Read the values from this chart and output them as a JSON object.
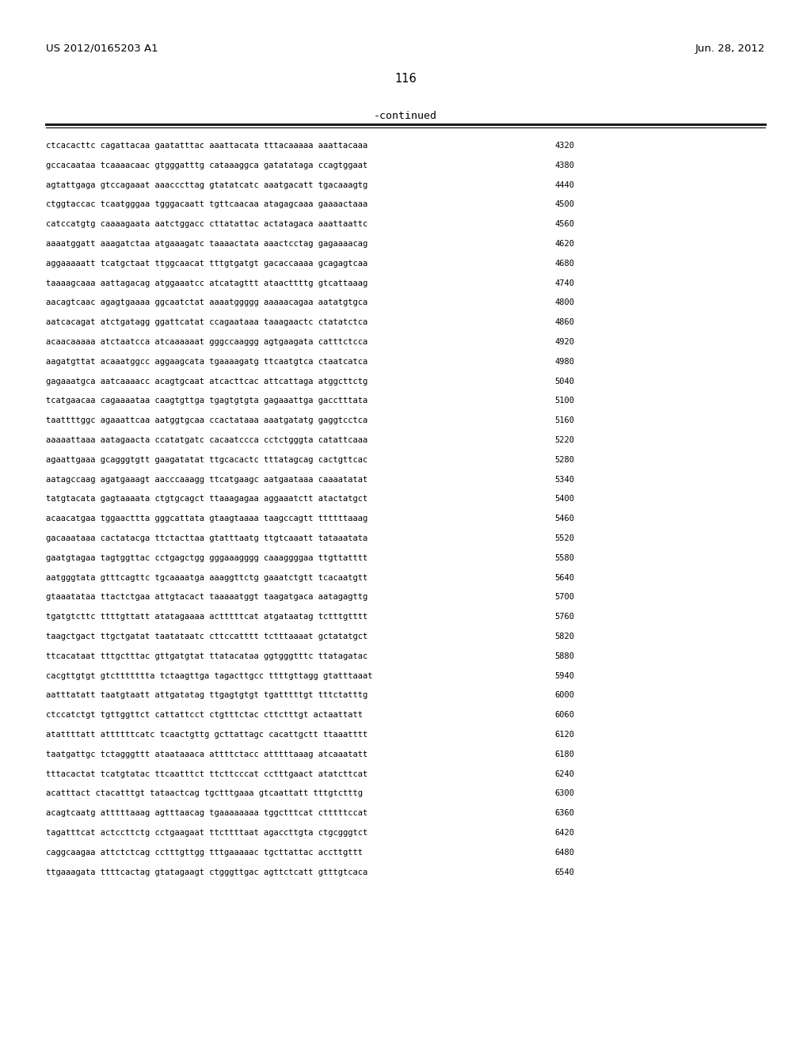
{
  "header_left": "US 2012/0165203 A1",
  "header_right": "Jun. 28, 2012",
  "page_number": "116",
  "continued_label": "-continued",
  "background_color": "#ffffff",
  "text_color": "#000000",
  "font_size_header": 9.5,
  "font_size_page": 10.5,
  "font_size_sequence": 7.5,
  "font_size_continued": 9.5,
  "sequences": [
    [
      "ctcacacttc cagattacaa gaatatttac aaattacata tttacaaaaa aaattacaaa",
      "4320"
    ],
    [
      "gccacaataa tcaaaacaac gtgggatttg cataaaggca gatatataga ccagtggaat",
      "4380"
    ],
    [
      "agtattgaga gtccagaaat aaacccttag gtatatcatc aaatgacatt tgacaaagtg",
      "4440"
    ],
    [
      "ctggtaccac tcaatgggaa tgggacaatt tgttcaacaa atagagcaaa gaaaactaaa",
      "4500"
    ],
    [
      "catccatgtg caaaagaata aatctggacc cttatattac actatagaca aaattaattc",
      "4560"
    ],
    [
      "aaaatggatt aaagatctaa atgaaagatc taaaactata aaactcctag gagaaaacag",
      "4620"
    ],
    [
      "aggaaaaatt tcatgctaat ttggcaacat tttgtgatgt gacaccaaaa gcagagtcaa",
      "4680"
    ],
    [
      "taaaagcaaa aattagacag atggaaatcc atcatagttt ataacttttg gtcattaaag",
      "4740"
    ],
    [
      "aacagtcaac agagtgaaaa ggcaatctat aaaatggggg aaaaacagaa aatatgtgca",
      "4800"
    ],
    [
      "aatcacagat atctgatagg ggattcatat ccagaataaa taaagaactc ctatatctca",
      "4860"
    ],
    [
      "acaacaaaaa atctaatcca atcaaaaaat gggccaaggg agtgaagata catttctcca",
      "4920"
    ],
    [
      "aagatgttat acaaatggcc aggaagcata tgaaaagatg ttcaatgtca ctaatcatca",
      "4980"
    ],
    [
      "gagaaatgca aatcaaaacc acagtgcaat atcacttcac attcattaga atggcttctg",
      "5040"
    ],
    [
      "tcatgaacaa cagaaaataa caagtgttga tgagtgtgta gagaaattga gacctttata",
      "5100"
    ],
    [
      "taattttggc agaaattcaa aatggtgcaa ccactataaa aaatgatatg gaggtcctca",
      "5160"
    ],
    [
      "aaaaattaaa aatagaacta ccatatgatc cacaatccca cctctgggta catattcaaa",
      "5220"
    ],
    [
      "agaattgaaa gcagggtgtt gaagatatat ttgcacactc tttatagcag cactgttcac",
      "5280"
    ],
    [
      "aatagccaag agatgaaagt aacccaaagg ttcatgaagc aatgaataaa caaaatatat",
      "5340"
    ],
    [
      "tatgtacata gagtaaaata ctgtgcagct ttaaagagaa aggaaatctt atactatgct",
      "5400"
    ],
    [
      "acaacatgaa tggaacttta gggcattata gtaagtaaaa taagccagtt ttttttaaag",
      "5460"
    ],
    [
      "gacaaataaa cactatacga ttctacttaa gtatttaatg ttgtcaaatt tataaatata",
      "5520"
    ],
    [
      "gaatgtagaa tagtggttac cctgagctgg gggaaagggg caaaggggaa ttgttatttt",
      "5580"
    ],
    [
      "aatgggtata gtttcagttc tgcaaaatga aaaggttctg gaaatctgtt tcacaatgtt",
      "5640"
    ],
    [
      "gtaaatataa ttactctgaa attgtacact taaaaatggt taagatgaca aatagagttg",
      "5700"
    ],
    [
      "tgatgtcttc ttttgttatt atatagaaaa actttttcat atgataatag tctttgtttt",
      "5760"
    ],
    [
      "taagctgact ttgctgatat taatataatc cttccatttt tctttaaaat gctatatgct",
      "5820"
    ],
    [
      "ttcacataat tttgctttac gttgatgtat ttatacataa ggtgggtttc ttatagatac",
      "5880"
    ],
    [
      "cacgttgtgt gtcttttttta tctaagttga tagacttgcc ttttgttagg gtatttaaat",
      "5940"
    ],
    [
      "aatttatatt taatgtaatt attgatatag ttgagtgtgt tgatttttgt tttctatttg",
      "6000"
    ],
    [
      "ctccatctgt tgttggttct cattattcct ctgtttctac cttctttgt actaattatt",
      "6060"
    ],
    [
      "atattttatt attttttcatc tcaactgttg gcttattagc cacattgctt ttaaatttt",
      "6120"
    ],
    [
      "taatgattgc tctagggttt ataataaaca attttctacc atttttaaag atcaaatatt",
      "6180"
    ],
    [
      "tttacactat tcatgtatac ttcaatttct ttcttcccat cctttgaact atatcttcat",
      "6240"
    ],
    [
      "acatttact ctacatttgt tataactcag tgctttgaaa gtcaattatt tttgtctttg",
      "6300"
    ],
    [
      "acagtcaatg atttttaaag agtttaacag tgaaaaaaaa tggctttcat ctttttccat",
      "6360"
    ],
    [
      "tagatttcat actccttctg cctgaagaat ttcttttaat agaccttgta ctgcgggtct",
      "6420"
    ],
    [
      "caggcaagaa attctctcag cctttgttgg tttgaaaaac tgcttattac accttgttt",
      "6480"
    ],
    [
      "ttgaaagata ttttcactag gtatagaagt ctgggttgac agttctcatt gtttgtcaca",
      "6540"
    ]
  ]
}
